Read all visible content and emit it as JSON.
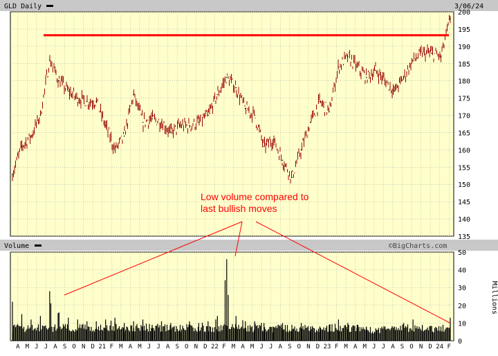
{
  "header": {
    "ticker_label": "GLD Daily",
    "date_label": "3/06/24",
    "volume_label": "Volume",
    "watermark": "©BigCharts.com"
  },
  "annotation": {
    "line1": "Low volume compared to",
    "line2": "last bullish moves"
  },
  "colors": {
    "plot_bg": "#ffffcc",
    "header_bg": "#c8c8c8",
    "price_bar": "#990000",
    "volume_bar": "#000000",
    "annotation": "#ff0000",
    "resistance": "#ff0000",
    "grid": "#999999"
  },
  "chart_data": [
    {
      "type": "line",
      "title": "GLD Daily",
      "series": [
        {
          "x": [
            "2020-04",
            "2020-05",
            "2020-06",
            "2020-07",
            "2020-08",
            "2020-09",
            "2020-10",
            "2020-11",
            "2020-12",
            "2021-01",
            "2021-02",
            "2021-03",
            "2021-04",
            "2021-05",
            "2021-06",
            "2021-07",
            "2021-08",
            "2021-09",
            "2021-10",
            "2021-11",
            "2021-12",
            "2022-01",
            "2022-02",
            "2022-03",
            "2022-04",
            "2022-05",
            "2022-06",
            "2022-07",
            "2022-08",
            "2022-09",
            "2022-10",
            "2022-11",
            "2022-12",
            "2023-01",
            "2023-02",
            "2023-03",
            "2023-04",
            "2023-05",
            "2023-06",
            "2023-07",
            "2023-08",
            "2023-09",
            "2023-10",
            "2023-11",
            "2023-12",
            "2024-01",
            "2024-02",
            "2024-03"
          ],
          "y": [
            153,
            161,
            164,
            170,
            186,
            180,
            177,
            175,
            174,
            174,
            167,
            160,
            164,
            176,
            168,
            169,
            168,
            165,
            167,
            167,
            168,
            170,
            176,
            181,
            178,
            172,
            170,
            161,
            163,
            157,
            152,
            160,
            168,
            174,
            171,
            184,
            187,
            184,
            181,
            183,
            180,
            177,
            181,
            186,
            188,
            188,
            187,
            198
          ]
        }
      ],
      "ylim": [
        135,
        200
      ],
      "yticks": [
        135,
        140,
        145,
        150,
        155,
        160,
        165,
        170,
        175,
        180,
        185,
        190,
        195,
        200
      ],
      "resistance_level": 193.2,
      "grid": true
    },
    {
      "type": "bar",
      "title": "Volume",
      "ylabel": "Millions",
      "series": [
        {
          "x": [
            "2020-04",
            "2020-05",
            "2020-06",
            "2020-07",
            "2020-08",
            "2020-09",
            "2020-10",
            "2020-11",
            "2020-12",
            "2021-01",
            "2021-02",
            "2021-03",
            "2021-04",
            "2021-05",
            "2021-06",
            "2021-07",
            "2021-08",
            "2021-09",
            "2021-10",
            "2021-11",
            "2021-12",
            "2022-01",
            "2022-02",
            "2022-03",
            "2022-04",
            "2022-05",
            "2022-06",
            "2022-07",
            "2022-08",
            "2022-09",
            "2022-10",
            "2022-11",
            "2022-12",
            "2023-01",
            "2023-02",
            "2023-03",
            "2023-04",
            "2023-05",
            "2023-06",
            "2023-07",
            "2023-08",
            "2023-09",
            "2023-10",
            "2023-11",
            "2023-12",
            "2024-01",
            "2024-02",
            "2024-03"
          ],
          "values": [
            22,
            15,
            12,
            14,
            28,
            16,
            13,
            12,
            11,
            11,
            12,
            13,
            10,
            11,
            12,
            9,
            11,
            10,
            9,
            11,
            10,
            11,
            14,
            46,
            14,
            11,
            11,
            10,
            8,
            10,
            9,
            10,
            8,
            8,
            9,
            12,
            10,
            9,
            8,
            7,
            8,
            8,
            10,
            12,
            9,
            8,
            8,
            13
          ]
        }
      ],
      "ylim": [
        0,
        50
      ],
      "yticks": [
        0,
        10,
        20,
        30,
        40,
        50
      ],
      "grid": true
    }
  ],
  "x_axis": {
    "labels": [
      "A",
      "M",
      "J",
      "J",
      "A",
      "S",
      "O",
      "N",
      "D",
      "21",
      "F",
      "M",
      "A",
      "M",
      "J",
      "J",
      "A",
      "S",
      "O",
      "N",
      "D",
      "22",
      "F",
      "M",
      "A",
      "M",
      "J",
      "J",
      "A",
      "S",
      "O",
      "N",
      "D",
      "23",
      "F",
      "M",
      "A",
      "M",
      "J",
      "J",
      "A",
      "S",
      "O",
      "N",
      "D",
      "24",
      "F"
    ]
  }
}
